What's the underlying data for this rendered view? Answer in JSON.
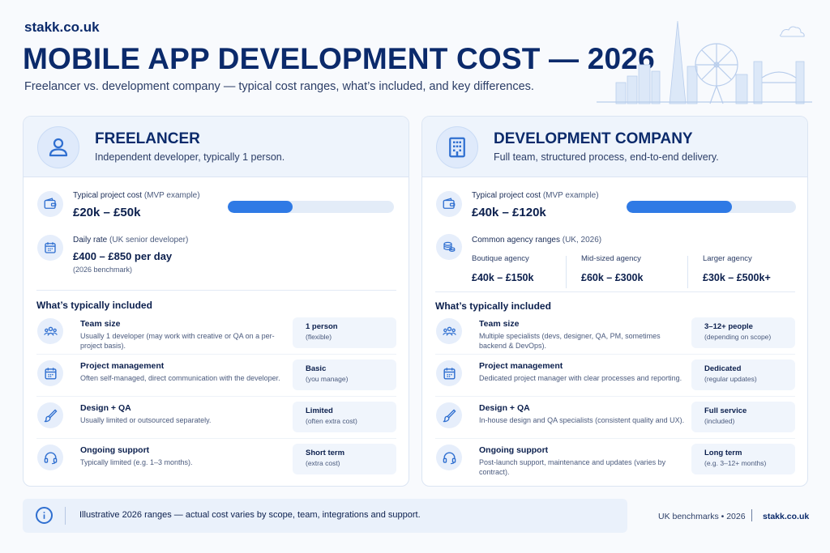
{
  "header": {
    "brand": "stakk.co.uk",
    "title": "MOBILE APP DEVELOPMENT COST — 2026",
    "subtitle": "Freelancer vs. development company — typical cost ranges, what’s included, and key differences."
  },
  "colors": {
    "accent": "#2f7ae5",
    "navy": "#0b2a6b",
    "panel": "#eef4fc"
  },
  "freelancer": {
    "title": "FREELANCER",
    "subtitle": "Independent developer, typically 1 person.",
    "icon": "person-icon",
    "project_cost_label": "Typical project cost",
    "project_cost_note": "(MVP example)",
    "project_cost": "£20k – £50k",
    "project_cost_bar": 0.39,
    "daily_rate_label": "Daily rate",
    "daily_rate_note": "(UK senior developer)",
    "daily_rate": "£400 – £850 per day",
    "daily_rate_sub": "(2026 benchmark)",
    "included_title": "What’s typically included",
    "rows": [
      {
        "icon": "team-icon",
        "title": "Team size",
        "desc": "Usually 1 developer (may work with creative or QA on a per-project basis).",
        "value": "1 person",
        "value_sub": "(flexible)"
      },
      {
        "icon": "calendar-icon",
        "title": "Project management",
        "desc": "Often self-managed, direct communication with the developer.",
        "value": "Basic",
        "value_sub": "(you manage)"
      },
      {
        "icon": "brush-icon",
        "title": "Design + QA",
        "desc": "Usually limited or outsourced separately.",
        "value": "Limited",
        "value_sub": "(often extra cost)"
      },
      {
        "icon": "headset-icon",
        "title": "Ongoing support",
        "desc": "Typically limited (e.g. 1–3 months).",
        "value": "Short term",
        "value_sub": "(extra cost)"
      }
    ]
  },
  "company": {
    "title": "DEVELOPMENT COMPANY",
    "subtitle": "Full team, structured process, end-to-end delivery.",
    "icon": "building-icon",
    "project_cost_label": "Typical project cost",
    "project_cost_note": "(MVP example)",
    "project_cost": "£40k – £120k",
    "project_cost_bar": 0.62,
    "agency_label": "Common agency ranges",
    "agency_note": "(UK, 2026)",
    "agencies": [
      {
        "name": "Boutique agency",
        "value": "£40k – £150k"
      },
      {
        "name": "Mid-sized agency",
        "value": "£60k – £300k"
      },
      {
        "name": "Larger agency",
        "value": "£30k – £500k+"
      }
    ],
    "included_title": "What’s typically included",
    "rows": [
      {
        "icon": "team-icon",
        "title": "Team size",
        "desc": "Multiple specialists (devs, designer, QA, PM, sometimes backend & DevOps).",
        "value": "3–12+ people",
        "value_sub": "(depending on scope)"
      },
      {
        "icon": "calendar-icon",
        "title": "Project management",
        "desc": "Dedicated project manager with clear processes and reporting.",
        "value": "Dedicated",
        "value_sub": "(regular updates)"
      },
      {
        "icon": "brush-icon",
        "title": "Design + QA",
        "desc": "In-house design and QA specialists (consistent quality and UX).",
        "value": "Full service",
        "value_sub": "(included)"
      },
      {
        "icon": "headset-icon",
        "title": "Ongoing support",
        "desc": "Post-launch support, maintenance and updates (varies by contract).",
        "value": "Long term",
        "value_sub": "(e.g. 3–12+ months)"
      }
    ]
  },
  "footer": {
    "note": "Illustrative 2026 ranges — actual cost varies by scope, team, integrations and support.",
    "benchmark": "UK benchmarks • 2026",
    "brand": "stakk.co.uk"
  }
}
